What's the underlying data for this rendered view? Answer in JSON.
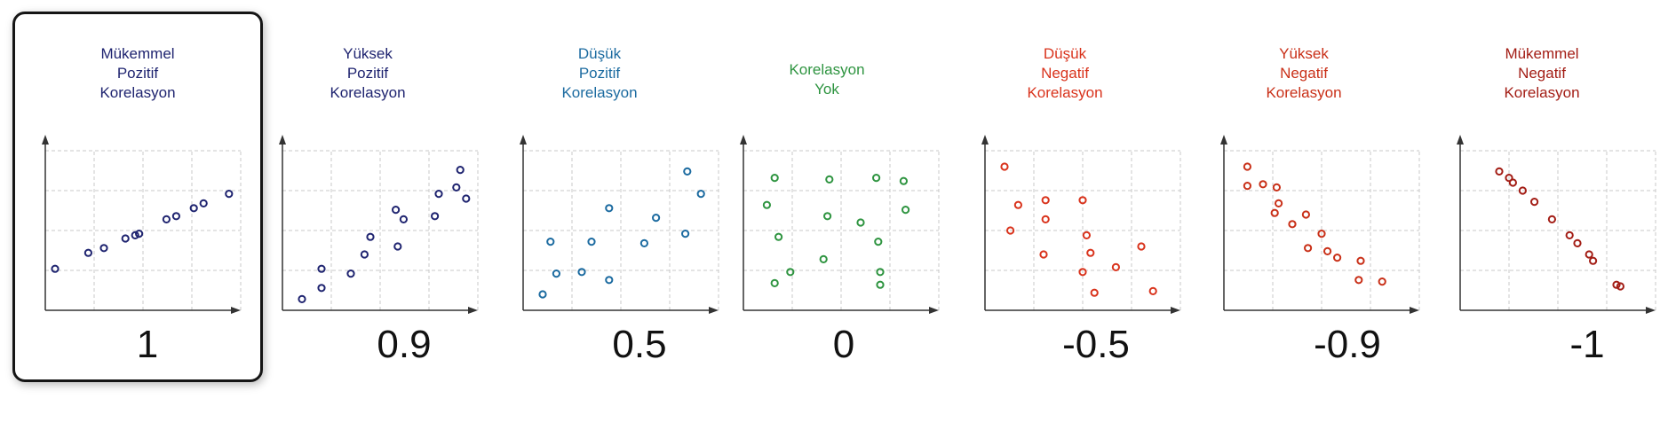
{
  "panels": [
    {
      "title": [
        "Mükemmel",
        "Pozitif",
        "Korelasyon"
      ],
      "value": "1",
      "color": "#1f2470",
      "selected": true,
      "points": [
        [
          0.05,
          0.26
        ],
        [
          0.22,
          0.36
        ],
        [
          0.3,
          0.39
        ],
        [
          0.41,
          0.45
        ],
        [
          0.46,
          0.47
        ],
        [
          0.48,
          0.48
        ],
        [
          0.62,
          0.57
        ],
        [
          0.67,
          0.59
        ],
        [
          0.76,
          0.64
        ],
        [
          0.81,
          0.67
        ],
        [
          0.94,
          0.73
        ]
      ]
    },
    {
      "title": [
        "Yüksek",
        "Pozitif",
        "Korelasyon"
      ],
      "value": "0.9",
      "color": "#1f2470",
      "selected": false,
      "points": [
        [
          0.1,
          0.07
        ],
        [
          0.2,
          0.14
        ],
        [
          0.2,
          0.26
        ],
        [
          0.35,
          0.23
        ],
        [
          0.42,
          0.35
        ],
        [
          0.45,
          0.46
        ],
        [
          0.59,
          0.4
        ],
        [
          0.58,
          0.63
        ],
        [
          0.62,
          0.57
        ],
        [
          0.78,
          0.59
        ],
        [
          0.8,
          0.73
        ],
        [
          0.89,
          0.77
        ],
        [
          0.91,
          0.88
        ],
        [
          0.94,
          0.7
        ]
      ]
    },
    {
      "title": [
        "Düşük",
        "Pozitif",
        "Korelasyon"
      ],
      "value": "0.5",
      "color": "#1c6ba0",
      "selected": false,
      "points": [
        [
          0.1,
          0.1
        ],
        [
          0.14,
          0.43
        ],
        [
          0.17,
          0.23
        ],
        [
          0.3,
          0.24
        ],
        [
          0.35,
          0.43
        ],
        [
          0.44,
          0.19
        ],
        [
          0.44,
          0.64
        ],
        [
          0.62,
          0.42
        ],
        [
          0.68,
          0.58
        ],
        [
          0.84,
          0.87
        ],
        [
          0.83,
          0.48
        ],
        [
          0.91,
          0.73
        ]
      ]
    },
    {
      "title": [
        "Korelasyon",
        "Yok"
      ],
      "value": "0",
      "color": "#2e9440",
      "selected": false,
      "points": [
        [
          0.16,
          0.83
        ],
        [
          0.12,
          0.66
        ],
        [
          0.18,
          0.46
        ],
        [
          0.24,
          0.24
        ],
        [
          0.16,
          0.17
        ],
        [
          0.44,
          0.82
        ],
        [
          0.43,
          0.59
        ],
        [
          0.41,
          0.32
        ],
        [
          0.6,
          0.55
        ],
        [
          0.68,
          0.83
        ],
        [
          0.69,
          0.43
        ],
        [
          0.7,
          0.24
        ],
        [
          0.7,
          0.16
        ],
        [
          0.82,
          0.81
        ],
        [
          0.83,
          0.63
        ]
      ]
    },
    {
      "title": [
        "Düşük",
        "Negatif",
        "Korelasyon"
      ],
      "value": "-0.5",
      "color": "#d9331c",
      "selected": false,
      "points": [
        [
          0.1,
          0.9
        ],
        [
          0.17,
          0.66
        ],
        [
          0.13,
          0.5
        ],
        [
          0.31,
          0.69
        ],
        [
          0.31,
          0.57
        ],
        [
          0.3,
          0.35
        ],
        [
          0.5,
          0.69
        ],
        [
          0.52,
          0.47
        ],
        [
          0.54,
          0.36
        ],
        [
          0.5,
          0.24
        ],
        [
          0.56,
          0.11
        ],
        [
          0.67,
          0.27
        ],
        [
          0.8,
          0.4
        ],
        [
          0.86,
          0.12
        ]
      ]
    },
    {
      "title": [
        "Yüksek",
        "Negatif",
        "Korelasyon"
      ],
      "value": "-0.9",
      "color": "#c93018",
      "selected": false,
      "points": [
        [
          0.12,
          0.9
        ],
        [
          0.12,
          0.78
        ],
        [
          0.2,
          0.79
        ],
        [
          0.27,
          0.77
        ],
        [
          0.28,
          0.67
        ],
        [
          0.26,
          0.61
        ],
        [
          0.35,
          0.54
        ],
        [
          0.42,
          0.6
        ],
        [
          0.5,
          0.48
        ],
        [
          0.43,
          0.39
        ],
        [
          0.53,
          0.37
        ],
        [
          0.58,
          0.33
        ],
        [
          0.7,
          0.31
        ],
        [
          0.69,
          0.19
        ],
        [
          0.81,
          0.18
        ]
      ]
    },
    {
      "title": [
        "Mükemmel",
        "Negatif",
        "Korelasyon"
      ],
      "value": "-1",
      "color": "#a31d15",
      "selected": false,
      "points": [
        [
          0.2,
          0.87
        ],
        [
          0.25,
          0.83
        ],
        [
          0.27,
          0.8
        ],
        [
          0.32,
          0.75
        ],
        [
          0.38,
          0.68
        ],
        [
          0.47,
          0.57
        ],
        [
          0.56,
          0.47
        ],
        [
          0.6,
          0.42
        ],
        [
          0.66,
          0.35
        ],
        [
          0.68,
          0.31
        ],
        [
          0.8,
          0.16
        ],
        [
          0.82,
          0.15
        ]
      ]
    }
  ]
}
